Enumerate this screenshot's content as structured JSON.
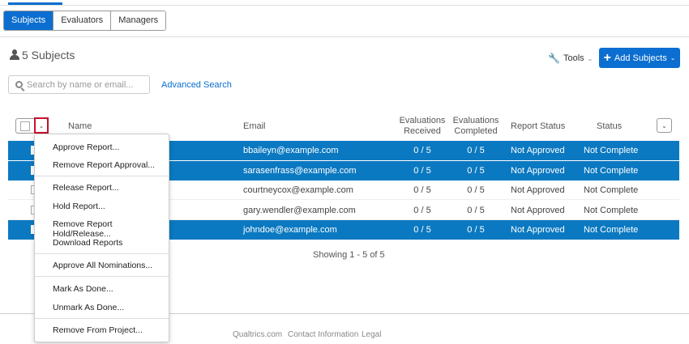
{
  "tabs": [
    {
      "label": "Subjects",
      "active": true
    },
    {
      "label": "Evaluators"
    },
    {
      "label": "Managers"
    }
  ],
  "header": {
    "subjects_count": "5 Subjects",
    "tools_label": "Tools",
    "add_label": "Add Subjects"
  },
  "search": {
    "placeholder": "Search by name or email...",
    "advanced": "Advanced Search"
  },
  "columns": {
    "name": "Name",
    "email": "Email",
    "eval_received": "Evaluations Received",
    "eval_completed": "Evaluations Completed",
    "report_status": "Report Status",
    "status": "Status"
  },
  "rows": [
    {
      "selected": true,
      "email": "bbaileyn@example.com",
      "received": "0 / 5",
      "completed": "0 / 5",
      "report": "Not Approved",
      "status": "Not Complete"
    },
    {
      "selected": true,
      "email": "sarasenfrass@example.com",
      "received": "0 / 5",
      "completed": "0 / 5",
      "report": "Not Approved",
      "status": "Not Complete"
    },
    {
      "selected": false,
      "email": "courtneycox@example.com",
      "received": "0 / 5",
      "completed": "0 / 5",
      "report": "Not Approved",
      "status": "Not Complete"
    },
    {
      "selected": false,
      "email": "gary.wendler@example.com",
      "received": "0 / 5",
      "completed": "0 / 5",
      "report": "Not Approved",
      "status": "Not Complete"
    },
    {
      "selected": true,
      "email": "johndoe@example.com",
      "received": "0 / 5",
      "completed": "0 / 5",
      "report": "Not Approved",
      "status": "Not Complete"
    }
  ],
  "menu": [
    "Approve Report...",
    "Remove Report Approval...",
    "Release Report...",
    "Hold Report...",
    "Remove Report Hold/Release...",
    "Download Reports",
    "Approve All Nominations...",
    "Mark As Done...",
    "Unmark As Done...",
    "Remove From Project..."
  ],
  "pagination": "Showing 1 - 5 of 5",
  "footer": [
    "Qualtrics.com",
    "Contact Information",
    "Legal"
  ],
  "colors": {
    "accent": "#0b6ed0",
    "selected_row": "#0b79c1",
    "highlight": "#c8102e"
  }
}
